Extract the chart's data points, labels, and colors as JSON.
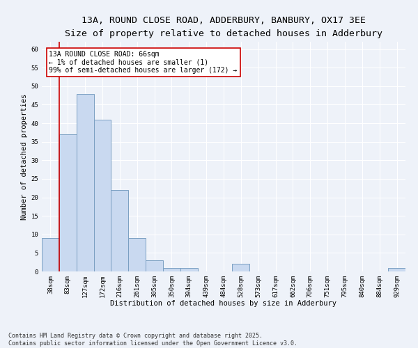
{
  "title_line1": "13A, ROUND CLOSE ROAD, ADDERBURY, BANBURY, OX17 3EE",
  "title_line2": "Size of property relative to detached houses in Adderbury",
  "xlabel": "Distribution of detached houses by size in Adderbury",
  "ylabel": "Number of detached properties",
  "bin_labels": [
    "38sqm",
    "83sqm",
    "127sqm",
    "172sqm",
    "216sqm",
    "261sqm",
    "305sqm",
    "350sqm",
    "394sqm",
    "439sqm",
    "484sqm",
    "528sqm",
    "573sqm",
    "617sqm",
    "662sqm",
    "706sqm",
    "751sqm",
    "795sqm",
    "840sqm",
    "884sqm",
    "929sqm"
  ],
  "bar_values": [
    9,
    37,
    48,
    41,
    22,
    9,
    3,
    1,
    1,
    0,
    0,
    2,
    0,
    0,
    0,
    0,
    0,
    0,
    0,
    0,
    1
  ],
  "bar_color": "#c9d9f0",
  "bar_edgecolor": "#7a9fc2",
  "background_color": "#eef2f9",
  "grid_color": "#ffffff",
  "vline_color": "#cc0000",
  "annotation_text": "13A ROUND CLOSE ROAD: 66sqm\n← 1% of detached houses are smaller (1)\n99% of semi-detached houses are larger (172) →",
  "annotation_box_edgecolor": "#cc0000",
  "annotation_box_facecolor": "#ffffff",
  "ylim": [
    0,
    62
  ],
  "yticks": [
    0,
    5,
    10,
    15,
    20,
    25,
    30,
    35,
    40,
    45,
    50,
    55,
    60
  ],
  "footnote": "Contains HM Land Registry data © Crown copyright and database right 2025.\nContains public sector information licensed under the Open Government Licence v3.0.",
  "title_fontsize": 9.5,
  "subtitle_fontsize": 8.5,
  "axis_label_fontsize": 7.5,
  "tick_fontsize": 6.5,
  "annotation_fontsize": 7,
  "footnote_fontsize": 6
}
